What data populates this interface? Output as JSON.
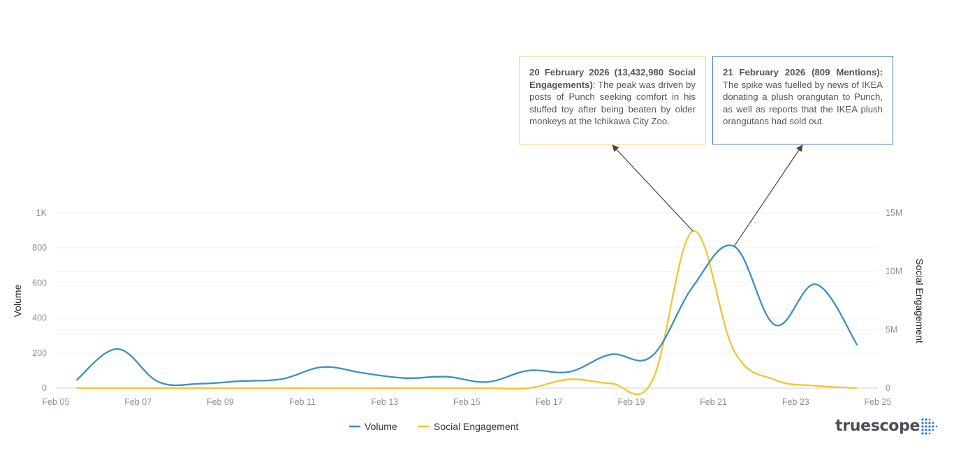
{
  "chart_data": {
    "type": "line",
    "title": "",
    "x_tick_labels": [
      "Feb 05",
      "Feb 07",
      "Feb 09",
      "Feb 11",
      "Feb 13",
      "Feb 15",
      "Feb 17",
      "Feb 19",
      "Feb 21",
      "Feb 23",
      "Feb 25"
    ],
    "x": [
      "2026-02-05",
      "2026-02-06",
      "2026-02-07",
      "2026-02-08",
      "2026-02-09",
      "2026-02-10",
      "2026-02-11",
      "2026-02-12",
      "2026-02-13",
      "2026-02-14",
      "2026-02-15",
      "2026-02-16",
      "2026-02-17",
      "2026-02-18",
      "2026-02-19",
      "2026-02-20",
      "2026-02-21",
      "2026-02-22",
      "2026-02-23",
      "2026-02-24"
    ],
    "xlim": [
      "2026-02-05",
      "2026-02-25"
    ],
    "ylabel_left": "Volume",
    "ylabel_right": "Social Engagement",
    "ylim_left": [
      0,
      1000
    ],
    "ylim_right": [
      0,
      15000000
    ],
    "left_tick_labels": [
      "0",
      "200",
      "400",
      "600",
      "800",
      "1K"
    ],
    "left_tick_values": [
      0,
      200,
      400,
      600,
      800,
      1000
    ],
    "right_tick_labels": [
      "0",
      "5M",
      "10M",
      "15M"
    ],
    "right_tick_values": [
      0,
      5000000,
      10000000,
      15000000
    ],
    "grid": true,
    "legend_position": "bottom",
    "series": [
      {
        "name": "Volume",
        "axis": "left",
        "color": "#3a8fc4",
        "values": [
          45,
          223,
          35,
          25,
          40,
          52,
          120,
          85,
          57,
          65,
          35,
          100,
          93,
          192,
          182,
          580,
          809,
          360,
          592,
          245
        ]
      },
      {
        "name": "Social Engagement",
        "axis": "right",
        "color": "#f5c332",
        "values": [
          0,
          0,
          0,
          0,
          0,
          0,
          0,
          0,
          0,
          0,
          0,
          0,
          750000,
          400000,
          550000,
          13432980,
          3200000,
          700000,
          200000,
          0
        ]
      }
    ],
    "annotations": [
      {
        "series": "Social Engagement",
        "date": "2026-02-20",
        "border_color": "#f3d77a",
        "bold": "20 February 2026 (13,432,980 Social Engagements)",
        "text": ": The peak was driven by posts of Punch seeking comfort in his stuffed toy after being beaten by older monkeys at the Ichikawa City Zoo."
      },
      {
        "series": "Volume",
        "date": "2026-02-21",
        "border_color": "#4a7fc1",
        "bold": "21 February 2026 (809 Mentions):",
        "text": " The spike was fuelled by news of IKEA donating a plush orangutan to Punch, as well as reports that the IKEA plush orangutans had sold out."
      }
    ]
  },
  "logo": {
    "text": "truescope"
  }
}
